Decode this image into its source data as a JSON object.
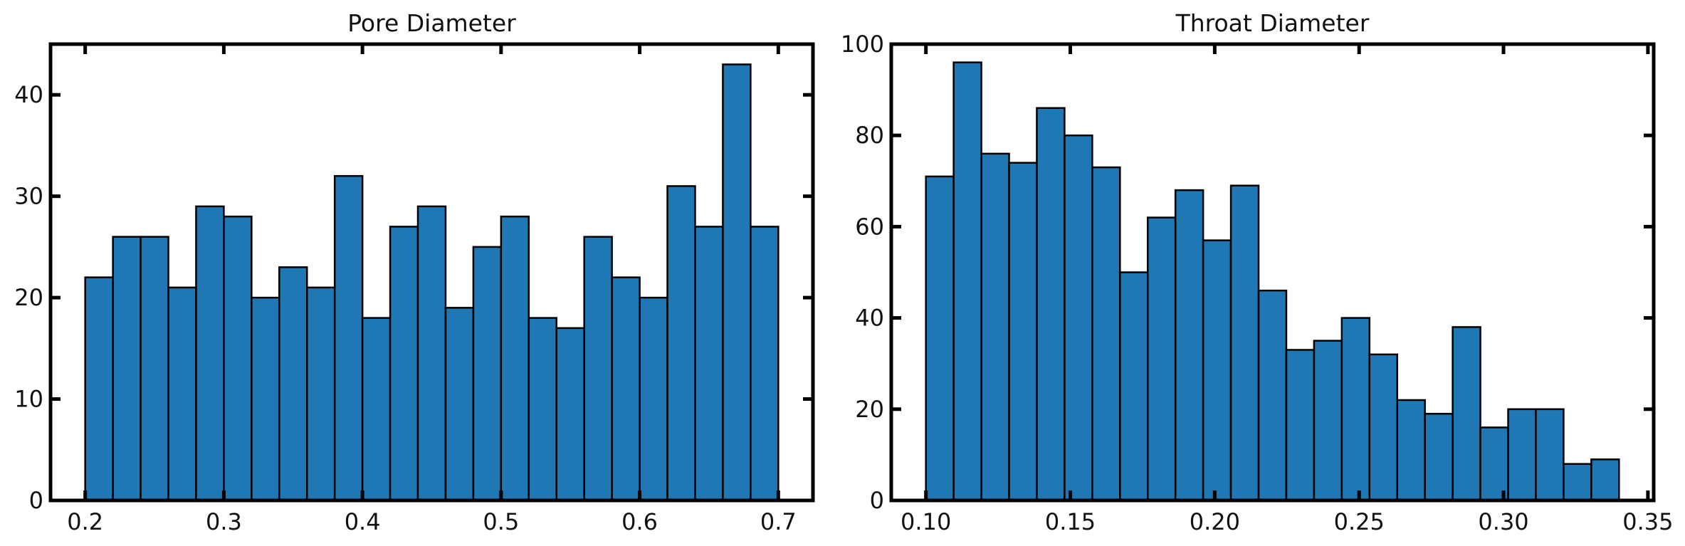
{
  "chart_data": [
    {
      "type": "bar",
      "title": "Pore Diameter",
      "xlabel": "",
      "ylabel": "",
      "bar_color": "#1f77b4",
      "bin_start": 0.2,
      "bin_end": 0.7,
      "counts": [
        22,
        26,
        26,
        21,
        29,
        28,
        20,
        23,
        21,
        32,
        18,
        27,
        29,
        19,
        25,
        28,
        18,
        17,
        26,
        22,
        20,
        31,
        27,
        43,
        27
      ],
      "xlim": [
        0.175,
        0.725
      ],
      "ylim": [
        0,
        45
      ],
      "xticks": [
        0.2,
        0.3,
        0.4,
        0.5,
        0.6,
        0.7
      ],
      "xtick_labels": [
        "0.2",
        "0.3",
        "0.4",
        "0.5",
        "0.6",
        "0.7"
      ],
      "yticks": [
        0,
        10,
        20,
        30,
        40
      ],
      "ytick_labels": [
        "0",
        "10",
        "20",
        "30",
        "40"
      ]
    },
    {
      "type": "bar",
      "title": "Throat Diameter",
      "xlabel": "",
      "ylabel": "",
      "bar_color": "#1f77b4",
      "bin_start": 0.1,
      "bin_end": 0.34,
      "counts": [
        71,
        96,
        76,
        74,
        86,
        80,
        73,
        50,
        62,
        68,
        57,
        69,
        46,
        33,
        35,
        40,
        32,
        22,
        19,
        38,
        16,
        20,
        20,
        8,
        9
      ],
      "xlim": [
        0.088,
        0.352
      ],
      "ylim": [
        0,
        100
      ],
      "xticks": [
        0.1,
        0.15,
        0.2,
        0.25,
        0.3,
        0.35
      ],
      "xtick_labels": [
        "0.10",
        "0.15",
        "0.20",
        "0.25",
        "0.30",
        "0.35"
      ],
      "yticks": [
        0,
        20,
        40,
        60,
        80,
        100
      ],
      "ytick_labels": [
        "0",
        "20",
        "40",
        "60",
        "80",
        "100"
      ]
    }
  ]
}
